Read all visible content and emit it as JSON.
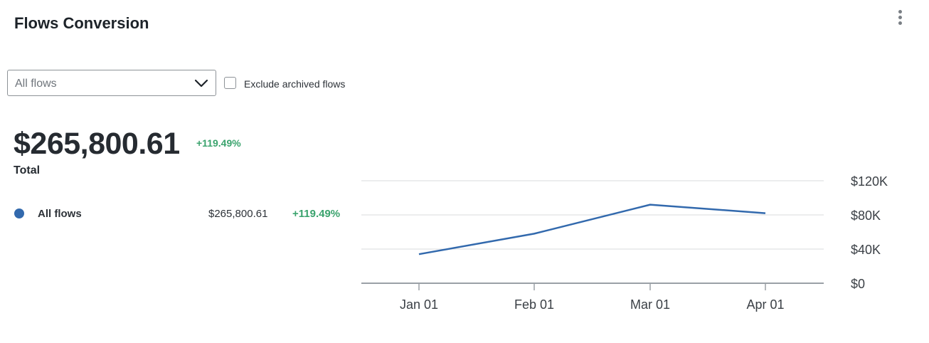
{
  "header": {
    "title": "Flows Conversion",
    "menu_icon": "kebab-vertical-icon"
  },
  "filters": {
    "flow_select": {
      "value": "All flows",
      "icon": "chevron-down-icon"
    },
    "exclude_archived": {
      "label": "Exclude archived flows",
      "checked": false
    }
  },
  "summary": {
    "total_value": "$265,800.61",
    "change": "+119.49%",
    "label": "Total"
  },
  "legend": [
    {
      "name": "All flows",
      "value": "$265,800.61",
      "change": "+119.49%",
      "color": "#3269ad"
    }
  ],
  "colors": {
    "positive": "#3aa36d",
    "series": "#3269ad",
    "grid": "#d9dbdd",
    "axis": "#9aa0a6"
  },
  "chart_data": {
    "type": "line",
    "categories": [
      "Jan 01",
      "Feb 01",
      "Mar 01",
      "Apr 01"
    ],
    "series": [
      {
        "name": "All flows",
        "values": [
          34000,
          58000,
          92000,
          82000
        ]
      }
    ],
    "ylim": [
      0,
      120000
    ],
    "yticks": [
      0,
      40000,
      80000,
      120000
    ],
    "ytick_labels": [
      "$0",
      "$40K",
      "$80K",
      "$120K"
    ],
    "y_axis_position": "right",
    "grid": true,
    "title": "",
    "xlabel": "",
    "ylabel": ""
  }
}
